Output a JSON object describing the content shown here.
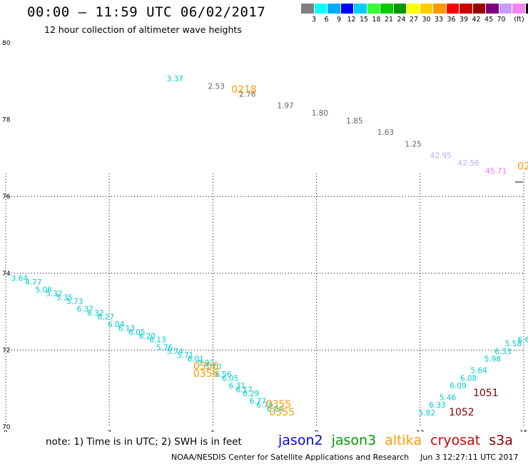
{
  "header": {
    "title": "00:00 – 11:59 UTC 06/02/2017",
    "subtitle": "12 hour collection of altimeter wave heights"
  },
  "colorbar": {
    "unit": "(ft)",
    "colors": [
      "#808080",
      "#00ffff",
      "#00aaff",
      "#0000ff",
      "#00ccff",
      "#33ff33",
      "#00cc00",
      "#009900",
      "#ffff00",
      "#ffcc00",
      "#ff9900",
      "#ff0000",
      "#cc0000",
      "#990000",
      "#800080",
      "#cc99ff",
      "#ee88ee",
      "#000000"
    ],
    "labels": [
      "3",
      "6",
      "9",
      "12",
      "15",
      "18",
      "21",
      "24",
      "27",
      "30",
      "33",
      "36",
      "39",
      "42",
      "45",
      "70"
    ]
  },
  "note": "note:  1) Time is in UTC;  2) SWH is in feet",
  "legend": [
    {
      "name": "jason2",
      "color": "#0000dd"
    },
    {
      "name": "jason3",
      "color": "#009900"
    },
    {
      "name": "altika",
      "color": "#ff9900"
    },
    {
      "name": "cryosat",
      "color": "#cc0000"
    },
    {
      "name": "s3a",
      "color": "#880000"
    }
  ],
  "credit": {
    "org": "NOAA/NESDIS Center for Satellite Applications and Research",
    "timestamp": "Jun  3 12:27:11 UTC 2017"
  },
  "chart_data": {
    "type": "scatter",
    "xlim": [
      0,
      15
    ],
    "ylim": [
      70,
      80
    ],
    "x_ticks": [
      "0",
      "3",
      "6",
      "9",
      "12",
      "15"
    ],
    "y_ticks": [
      "70",
      "72",
      "74",
      "76",
      "78",
      "80"
    ],
    "grid": true,
    "wave_labels": [
      {
        "x": 4.9,
        "y": 79.0,
        "text": "3.37",
        "color": "#00cccc"
      },
      {
        "x": 6.1,
        "y": 78.8,
        "text": "2.53",
        "color": "#666666"
      },
      {
        "x": 7.0,
        "y": 78.6,
        "text": "2.76",
        "color": "#666666"
      },
      {
        "x": 8.1,
        "y": 78.3,
        "text": "1.97",
        "color": "#666666"
      },
      {
        "x": 9.1,
        "y": 78.1,
        "text": "1.80",
        "color": "#666666"
      },
      {
        "x": 10.1,
        "y": 77.9,
        "text": "1.85",
        "color": "#666666"
      },
      {
        "x": 11.0,
        "y": 77.6,
        "text": "1.63",
        "color": "#666666"
      },
      {
        "x": 11.8,
        "y": 77.3,
        "text": "1.25",
        "color": "#666666"
      },
      {
        "x": 12.6,
        "y": 77.0,
        "text": "42.95",
        "color": "#bbaaff"
      },
      {
        "x": 13.4,
        "y": 76.8,
        "text": "42.56",
        "color": "#bbaaff"
      },
      {
        "x": 14.2,
        "y": 76.6,
        "text": "45.71",
        "color": "#ee77ee"
      },
      {
        "x": 0.4,
        "y": 73.8,
        "text": "3.64",
        "color": "#00cccc"
      },
      {
        "x": 0.8,
        "y": 73.7,
        "text": "4.77",
        "color": "#00cccc"
      },
      {
        "x": 1.1,
        "y": 73.5,
        "text": "5.06",
        "color": "#00cccc"
      },
      {
        "x": 1.4,
        "y": 73.4,
        "text": "5.32",
        "color": "#00cccc"
      },
      {
        "x": 1.7,
        "y": 73.3,
        "text": "5.35",
        "color": "#00cccc"
      },
      {
        "x": 2.0,
        "y": 73.2,
        "text": "5.73",
        "color": "#00cccc"
      },
      {
        "x": 2.3,
        "y": 73.0,
        "text": "6.37",
        "color": "#00cccc"
      },
      {
        "x": 2.6,
        "y": 72.9,
        "text": "6.32",
        "color": "#00cccc"
      },
      {
        "x": 2.9,
        "y": 72.8,
        "text": "6.27",
        "color": "#00cccc"
      },
      {
        "x": 3.2,
        "y": 72.6,
        "text": "6.04",
        "color": "#00cccc"
      },
      {
        "x": 3.5,
        "y": 72.5,
        "text": "6.13",
        "color": "#00cccc"
      },
      {
        "x": 3.8,
        "y": 72.4,
        "text": "6.05",
        "color": "#00cccc"
      },
      {
        "x": 4.1,
        "y": 72.3,
        "text": "6.20",
        "color": "#00cccc"
      },
      {
        "x": 4.4,
        "y": 72.2,
        "text": "6.13",
        "color": "#00cccc"
      },
      {
        "x": 4.6,
        "y": 72.0,
        "text": "5.76",
        "color": "#00cccc"
      },
      {
        "x": 4.9,
        "y": 71.9,
        "text": "5.74",
        "color": "#00cccc"
      },
      {
        "x": 5.2,
        "y": 71.8,
        "text": "5.71",
        "color": "#00cccc"
      },
      {
        "x": 5.5,
        "y": 71.7,
        "text": "6.01",
        "color": "#00cccc"
      },
      {
        "x": 5.8,
        "y": 71.6,
        "text": "5.92",
        "color": "#00cccc"
      },
      {
        "x": 6.0,
        "y": 71.5,
        "text": "5.70",
        "color": "#00cccc"
      },
      {
        "x": 6.3,
        "y": 71.3,
        "text": "6.56",
        "color": "#00cccc"
      },
      {
        "x": 6.5,
        "y": 71.2,
        "text": "6.05",
        "color": "#00cccc"
      },
      {
        "x": 6.7,
        "y": 71.0,
        "text": "6.31",
        "color": "#00cccc"
      },
      {
        "x": 6.9,
        "y": 70.9,
        "text": "6.17",
        "color": "#00cccc"
      },
      {
        "x": 7.1,
        "y": 70.8,
        "text": "6.29",
        "color": "#00cccc"
      },
      {
        "x": 7.3,
        "y": 70.6,
        "text": "6.77",
        "color": "#00cccc"
      },
      {
        "x": 7.5,
        "y": 70.5,
        "text": "6.79",
        "color": "#00cccc"
      },
      {
        "x": 7.8,
        "y": 70.4,
        "text": "6.84",
        "color": "#00cccc"
      },
      {
        "x": 12.2,
        "y": 70.3,
        "text": "5.82",
        "color": "#00cccc"
      },
      {
        "x": 12.5,
        "y": 70.5,
        "text": "6.33",
        "color": "#00cccc"
      },
      {
        "x": 12.8,
        "y": 70.7,
        "text": "5.46",
        "color": "#00cccc"
      },
      {
        "x": 13.1,
        "y": 71.0,
        "text": "6.09",
        "color": "#00cccc"
      },
      {
        "x": 13.4,
        "y": 71.2,
        "text": "6.08",
        "color": "#00cccc"
      },
      {
        "x": 13.7,
        "y": 71.4,
        "text": "5.64",
        "color": "#00cccc"
      },
      {
        "x": 14.1,
        "y": 71.7,
        "text": "5.98",
        "color": "#00cccc"
      },
      {
        "x": 14.4,
        "y": 71.9,
        "text": "6.33",
        "color": "#00cccc"
      },
      {
        "x": 14.7,
        "y": 72.1,
        "text": "5.58",
        "color": "#00cccc"
      },
      {
        "x": 15.0,
        "y": 72.2,
        "text": "6.6",
        "color": "#00cccc"
      }
    ],
    "time_labels": [
      {
        "x": 6.9,
        "y": 78.7,
        "text": "0218",
        "color": "#ff9900"
      },
      {
        "x": 15.0,
        "y": 76.7,
        "text": "02",
        "color": "#ff9900"
      },
      {
        "x": 5.8,
        "y": 71.5,
        "text": "0356",
        "color": "#ff9900"
      },
      {
        "x": 5.8,
        "y": 71.3,
        "text": "0356",
        "color": "#ff9900"
      },
      {
        "x": 7.9,
        "y": 70.5,
        "text": "0355",
        "color": "#ff9900"
      },
      {
        "x": 8.0,
        "y": 70.3,
        "text": "0355",
        "color": "#ff9900"
      },
      {
        "x": 13.2,
        "y": 70.3,
        "text": "1052",
        "color": "#880000"
      },
      {
        "x": 13.9,
        "y": 70.8,
        "text": "1051",
        "color": "#880000"
      }
    ]
  }
}
